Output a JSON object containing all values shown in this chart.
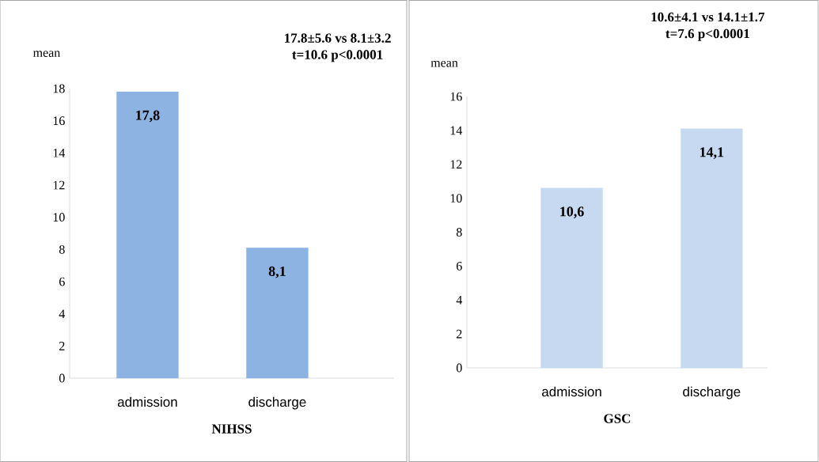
{
  "chart_data": [
    {
      "type": "bar",
      "xlabel": "NIHSS",
      "ylabel": "mean",
      "categories": [
        "admission",
        "discharge"
      ],
      "values": [
        17.8,
        8.1
      ],
      "value_labels": [
        "17,8",
        "8,1"
      ],
      "color": "#8db3e2",
      "ylim": [
        0,
        18
      ],
      "yticks": [
        0,
        2,
        4,
        6,
        8,
        10,
        12,
        14,
        16,
        18
      ],
      "annotations": [
        "17.8±5.6 vs 8.1±3.2",
        "t=10.6 p<0.0001"
      ]
    },
    {
      "type": "bar",
      "xlabel": "GSC",
      "ylabel": "mean",
      "categories": [
        "admission",
        "discharge"
      ],
      "values": [
        10.6,
        14.1
      ],
      "value_labels": [
        "10,6",
        "14,1"
      ],
      "color": "#c6d9f1",
      "ylim": [
        0,
        16
      ],
      "yticks": [
        0,
        2,
        4,
        6,
        8,
        10,
        12,
        14,
        16
      ],
      "annotations": [
        "10.6±4.1 vs 14.1±1.7",
        "t=7.6 p<0.0001"
      ]
    }
  ]
}
